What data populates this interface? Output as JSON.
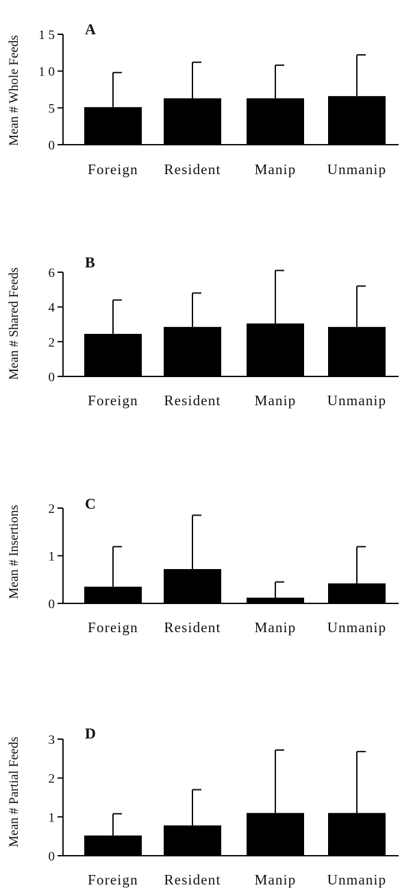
{
  "chart_data": [
    {
      "type": "bar",
      "panel_label": "A",
      "ylabel": "Mean # Whole Feeds",
      "categories": [
        "Foreign",
        "Resident",
        "Manip",
        "Unmanip"
      ],
      "values": [
        5.1,
        6.3,
        6.3,
        6.6
      ],
      "error_upper": [
        9.8,
        11.2,
        10.8,
        12.2
      ],
      "ylim": [
        0,
        15
      ],
      "yticks": [
        "0",
        "5",
        "1 0",
        "1 5"
      ],
      "ytick_values": [
        0,
        5,
        10,
        15
      ]
    },
    {
      "type": "bar",
      "panel_label": "B",
      "ylabel": "Mean # Shared Feeds",
      "categories": [
        "Foreign",
        "Resident",
        "Manip",
        "Unmanip"
      ],
      "values": [
        2.45,
        2.85,
        3.05,
        2.85
      ],
      "error_upper": [
        4.4,
        4.8,
        6.1,
        5.2
      ],
      "ylim": [
        0,
        6
      ],
      "yticks": [
        "0",
        "2",
        "4",
        "6"
      ],
      "ytick_values": [
        0,
        2,
        4,
        6
      ]
    },
    {
      "type": "bar",
      "panel_label": "C",
      "ylabel": "Mean # Insertions",
      "categories": [
        "Foreign",
        "Resident",
        "Manip",
        "Unmanip"
      ],
      "values": [
        0.35,
        0.72,
        0.12,
        0.42
      ],
      "error_upper": [
        1.19,
        1.85,
        0.45,
        1.19
      ],
      "ylim": [
        0,
        2
      ],
      "yticks": [
        "0",
        "1",
        "2"
      ],
      "ytick_values": [
        0,
        1,
        2
      ]
    },
    {
      "type": "bar",
      "panel_label": "D",
      "ylabel": "Mean # Partial Feeds",
      "categories": [
        "Foreign",
        "Resident",
        "Manip",
        "Unmanip"
      ],
      "values": [
        0.52,
        0.78,
        1.1,
        1.1
      ],
      "error_upper": [
        1.08,
        1.7,
        2.72,
        2.68
      ],
      "ylim": [
        0,
        3
      ],
      "yticks": [
        "0",
        "1",
        "2",
        "3"
      ],
      "ytick_values": [
        0,
        1,
        2,
        3
      ]
    }
  ]
}
